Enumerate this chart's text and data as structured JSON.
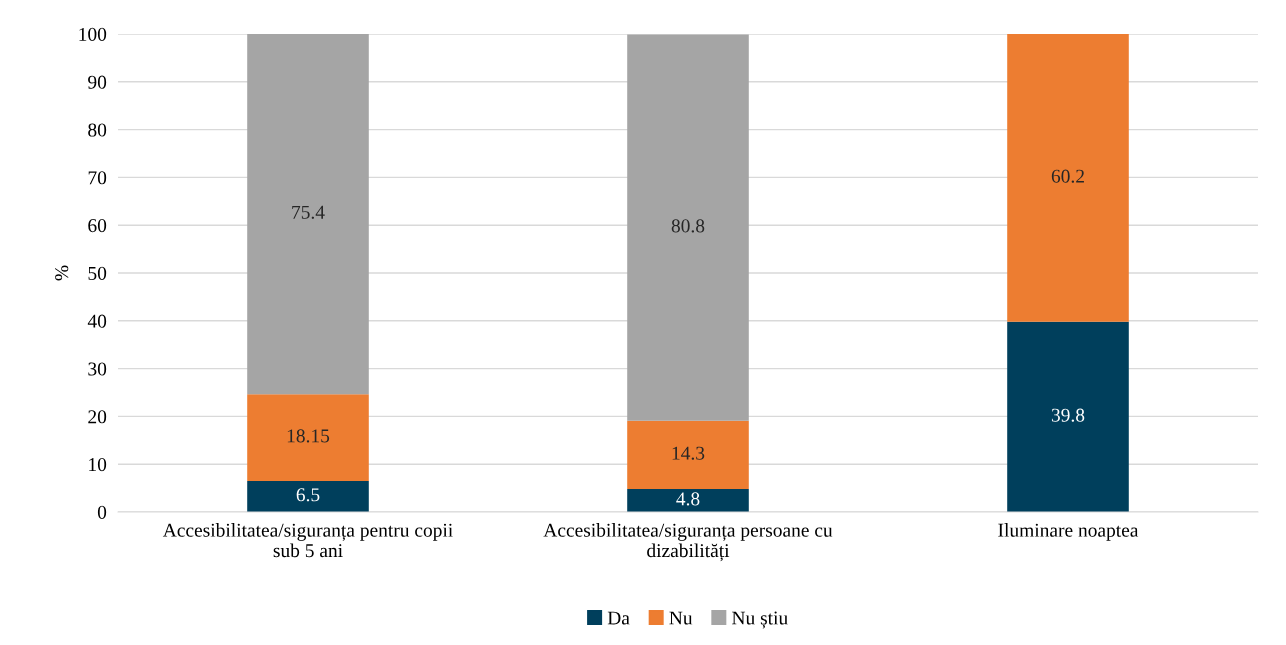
{
  "chart_data": {
    "type": "bar",
    "stacked": true,
    "ylabel": "%",
    "categories": [
      "Accesibilitatea/siguranța pentru copii\nsub 5 ani",
      "Accesibilitatea/siguranța persoane cu\ndizabilități",
      "Iluminare noaptea"
    ],
    "series": [
      {
        "name": "Da",
        "color": "#003f5c",
        "values": [
          6.5,
          4.8,
          39.8
        ]
      },
      {
        "name": "Nu",
        "color": "#ed7d31",
        "values": [
          18.15,
          14.3,
          60.2
        ]
      },
      {
        "name": "Nu știu",
        "color": "#a5a5a5",
        "values": [
          75.4,
          80.8,
          null
        ]
      }
    ],
    "ylim": [
      0,
      100
    ],
    "yticks": [
      0,
      10,
      20,
      30,
      40,
      50,
      60,
      70,
      80,
      90,
      100
    ],
    "grid": "y",
    "legend": "bottom",
    "data_labels": true
  }
}
